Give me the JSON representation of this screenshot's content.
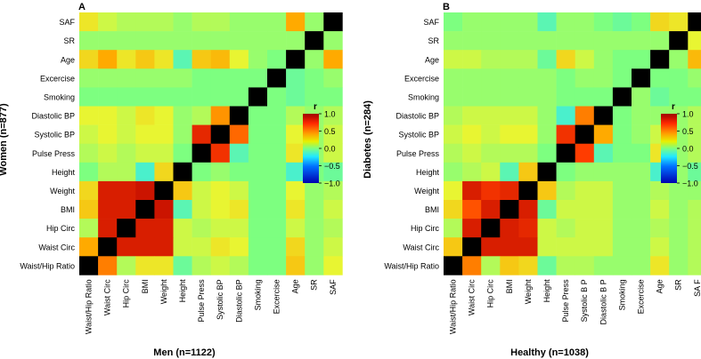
{
  "chart_data": [
    {
      "type": "heatmap",
      "panel_letter": "A",
      "title": "",
      "ylabel": "Women (n=877)",
      "xlabel": "Men (n=1122)",
      "row_labels": [
        "SAF",
        "SR",
        "Age",
        "Excercise",
        "Smoking",
        "Diastolic BP",
        "Systolic BP",
        "Pulse Press",
        "Height",
        "Weight",
        "BMI",
        "Hip Circ",
        "Waist Circ",
        "Waist/Hip Ratio"
      ],
      "col_labels": [
        "Waist/Hip Ratio",
        "Waist Circ",
        "Hip Circ",
        "BMI",
        "Weight",
        "Height",
        "Pulse Press",
        "Systolic BP",
        "Diastolic BP",
        "Smoking",
        "Excercise",
        "Age",
        "SR",
        "SAF"
      ],
      "values": [
        [
          0.25,
          0.15,
          0.1,
          0.1,
          0.1,
          0.05,
          0.1,
          0.1,
          0.05,
          0.05,
          0.05,
          0.45,
          0.05,
          1
        ],
        [
          0.05,
          0.05,
          0.05,
          0.05,
          0.05,
          0.05,
          0.05,
          0.05,
          0.05,
          0.05,
          0.05,
          0.05,
          1,
          0.05
        ],
        [
          0.3,
          0.45,
          0.25,
          0.35,
          0.25,
          -0.1,
          0.35,
          0.4,
          0.2,
          0.05,
          0.0,
          1,
          0.05,
          0.45
        ],
        [
          0.05,
          0.05,
          0.05,
          0.05,
          0.05,
          0.05,
          0.0,
          0.0,
          0.0,
          0.0,
          1,
          -0.05,
          0.0,
          0.05
        ],
        [
          0.0,
          0.0,
          0.0,
          0.0,
          0.0,
          0.0,
          0.0,
          0.0,
          0.0,
          1,
          0.0,
          -0.05,
          0.0,
          0.0
        ],
        [
          0.2,
          0.2,
          0.15,
          0.25,
          0.2,
          0.05,
          0.1,
          0.5,
          1,
          0.0,
          0.0,
          0.1,
          0.05,
          0.1
        ],
        [
          0.15,
          0.2,
          0.15,
          0.2,
          0.2,
          0.05,
          0.8,
          1,
          0.6,
          0.0,
          0.0,
          0.2,
          0.05,
          0.15
        ],
        [
          0.1,
          0.15,
          0.1,
          0.15,
          0.15,
          0.0,
          1,
          0.75,
          -0.1,
          0.0,
          0.0,
          0.25,
          0.05,
          0.15
        ],
        [
          0.0,
          0.1,
          0.1,
          -0.15,
          0.3,
          1,
          0.0,
          0.05,
          0.0,
          0.0,
          0.0,
          -0.15,
          0.0,
          -0.05
        ],
        [
          0.3,
          0.85,
          0.85,
          0.9,
          1,
          0.35,
          0.15,
          0.2,
          0.15,
          0.0,
          0.0,
          0.2,
          0.05,
          0.1
        ],
        [
          0.35,
          0.85,
          0.85,
          1,
          0.9,
          -0.1,
          0.15,
          0.2,
          0.25,
          0.0,
          0.0,
          0.25,
          0.05,
          0.15
        ],
        [
          0.1,
          0.85,
          1,
          0.85,
          0.85,
          0.15,
          0.1,
          0.15,
          0.15,
          0.0,
          0.0,
          0.15,
          0.05,
          0.1
        ],
        [
          0.45,
          1,
          0.85,
          0.85,
          0.85,
          0.15,
          0.15,
          0.25,
          0.2,
          0.0,
          0.0,
          0.3,
          0.05,
          0.15
        ],
        [
          1,
          0.55,
          0.1,
          0.25,
          0.25,
          -0.05,
          0.1,
          0.15,
          0.1,
          0.0,
          0.0,
          0.35,
          0.05,
          0.2
        ]
      ]
    },
    {
      "type": "heatmap",
      "panel_letter": "B",
      "title": "",
      "ylabel": "Diabetes (n=284)",
      "xlabel": "Healthy (n=1038)",
      "row_labels": [
        "SAF",
        "SR",
        "Age",
        "Excercise",
        "Smoking",
        "Diastolic BP",
        "Systolic BP",
        "Pulse Press",
        "Height",
        "Weight",
        "BMI",
        "Hip Circ",
        "Waist Circ",
        "Waist/Hip Ratio"
      ],
      "col_labels": [
        "Waist/Hip Ratio",
        "Waist Circ",
        "Hip Circ",
        "BMI",
        "Weight",
        "Height",
        "Pulse Press",
        "Systolic B P",
        "Diastolic B P",
        "Smoking",
        "Excercise",
        "Age",
        "SR",
        "SA F"
      ],
      "values": [
        [
          0.0,
          0.05,
          0.05,
          0.05,
          0.05,
          -0.1,
          0.05,
          0.05,
          0.0,
          -0.05,
          0.0,
          0.3,
          0.25,
          1
        ],
        [
          0.05,
          0.05,
          0.05,
          0.05,
          0.05,
          0.05,
          0.05,
          0.05,
          0.05,
          0.05,
          0.05,
          0.05,
          1,
          0.2
        ],
        [
          0.15,
          0.15,
          0.1,
          0.1,
          0.1,
          -0.05,
          0.3,
          0.15,
          0.05,
          0.0,
          0.0,
          1,
          0.05,
          0.4
        ],
        [
          0.05,
          0.05,
          0.05,
          0.05,
          0.05,
          0.05,
          0.0,
          0.05,
          0.05,
          0.0,
          1,
          0.0,
          0.0,
          0.05
        ],
        [
          0.05,
          0.05,
          0.05,
          0.05,
          0.05,
          0.05,
          0.0,
          0.0,
          0.0,
          1,
          0.05,
          -0.05,
          0.0,
          0.0
        ],
        [
          0.1,
          0.15,
          0.15,
          0.15,
          0.15,
          0.05,
          -0.15,
          0.55,
          1,
          0.0,
          0.05,
          0.05,
          0.05,
          0.1
        ],
        [
          0.15,
          0.2,
          0.15,
          0.2,
          0.2,
          0.05,
          0.75,
          1,
          0.45,
          0.0,
          0.05,
          0.15,
          0.05,
          0.1
        ],
        [
          0.1,
          0.15,
          0.1,
          0.1,
          0.1,
          0.0,
          1,
          0.7,
          -0.1,
          0.0,
          0.0,
          0.25,
          0.05,
          0.1
        ],
        [
          0.05,
          0.1,
          0.15,
          -0.1,
          0.35,
          1,
          0.0,
          0.05,
          0.05,
          0.05,
          0.05,
          -0.15,
          0.05,
          -0.05
        ],
        [
          0.2,
          0.85,
          0.75,
          0.8,
          1,
          0.35,
          0.1,
          0.15,
          0.15,
          0.05,
          0.05,
          0.1,
          0.05,
          0.05
        ],
        [
          0.3,
          0.65,
          0.85,
          1,
          0.85,
          -0.05,
          0.15,
          0.15,
          0.15,
          0.05,
          0.05,
          0.15,
          0.05,
          0.1
        ],
        [
          0.1,
          0.85,
          1,
          0.85,
          0.8,
          0.15,
          0.1,
          0.15,
          0.15,
          0.05,
          0.05,
          0.1,
          0.05,
          0.1
        ],
        [
          0.35,
          1,
          0.85,
          0.85,
          0.85,
          0.15,
          0.15,
          0.15,
          0.15,
          0.05,
          0.05,
          0.15,
          0.05,
          0.1
        ],
        [
          1,
          0.55,
          0.1,
          0.35,
          0.3,
          -0.05,
          0.1,
          0.1,
          0.05,
          0.05,
          0.05,
          0.25,
          0.05,
          0.1
        ]
      ]
    }
  ],
  "legend": {
    "title": "r",
    "ticks": [
      "1.0",
      "0.5",
      "0.0",
      "−0.5",
      "−1.0"
    ],
    "range": [
      -1,
      1
    ]
  }
}
